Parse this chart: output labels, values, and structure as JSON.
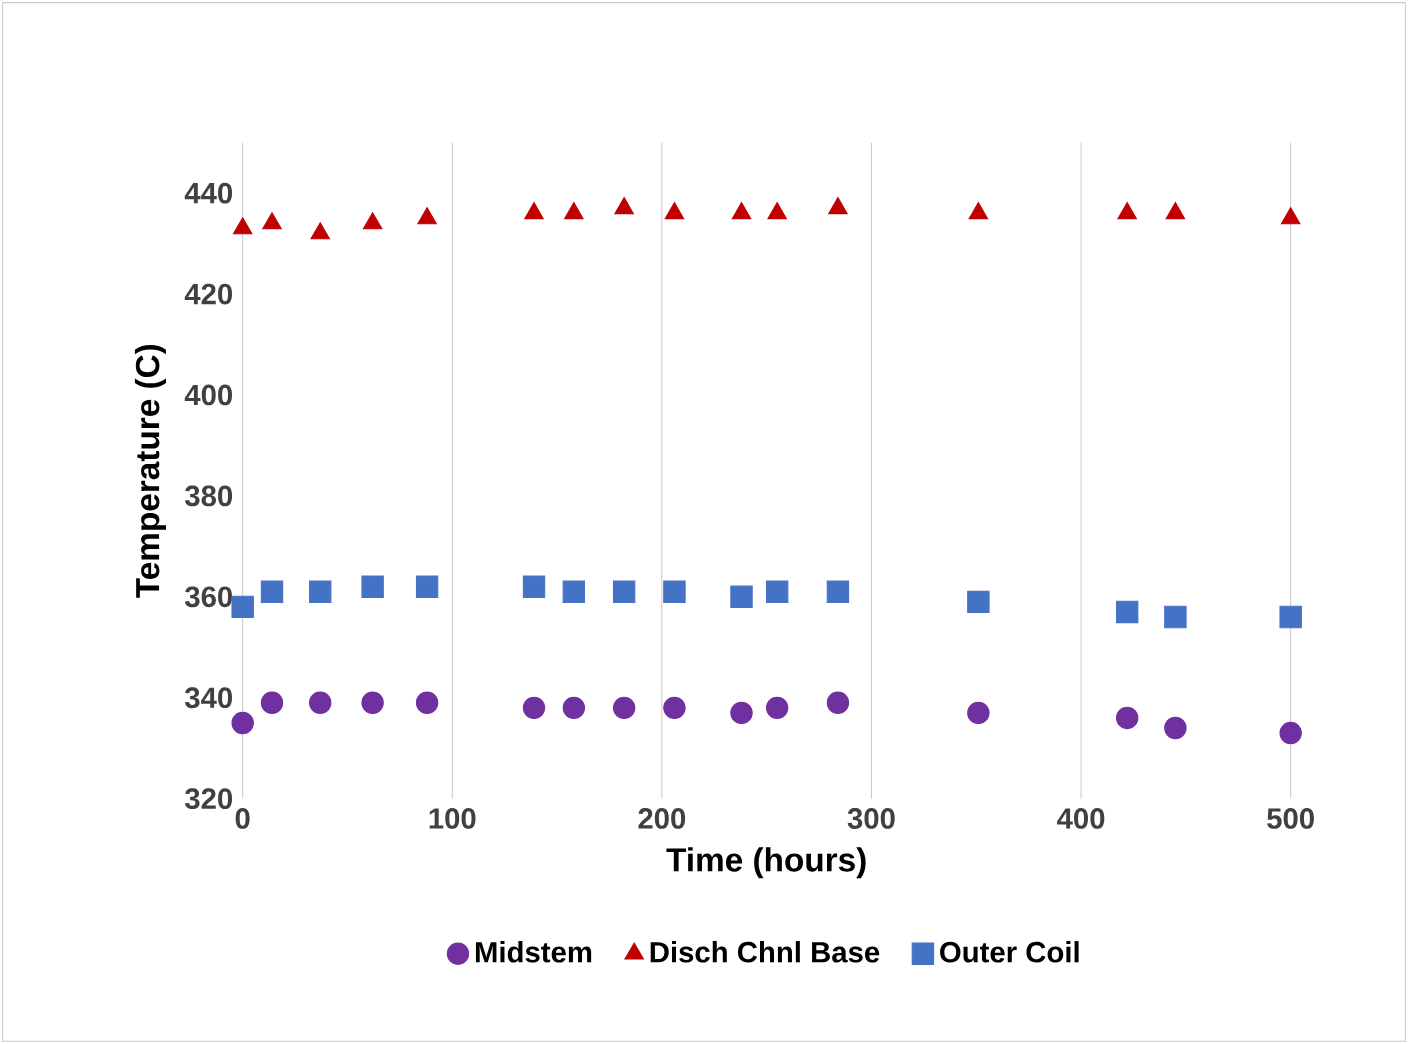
{
  "chart_data": {
    "type": "scatter",
    "xlabel": "Time (hours)",
    "ylabel": "Temperature (C)",
    "xlim": [
      0,
      500
    ],
    "xticks": [
      0,
      100,
      200,
      300,
      400,
      500
    ],
    "ylim": [
      320,
      450
    ],
    "yticks": [
      320,
      340,
      360,
      380,
      400,
      420,
      440
    ],
    "grid": "x",
    "legend": "bottom",
    "series": [
      {
        "name": "Midstem",
        "color": "#7030a0",
        "marker": "circle",
        "x": [
          0,
          14,
          37,
          62,
          88,
          139,
          158,
          182,
          206,
          238,
          255,
          284,
          351,
          422,
          445,
          500
        ],
        "values": [
          335,
          339,
          339,
          339,
          339,
          338,
          338,
          338,
          338,
          337,
          338,
          339,
          337,
          336,
          334,
          333
        ]
      },
      {
        "name": "Disch Chnl Base",
        "color": "#c00000",
        "marker": "triangle",
        "x": [
          0,
          14,
          37,
          62,
          88,
          139,
          158,
          182,
          206,
          238,
          255,
          284,
          351,
          422,
          445,
          500
        ],
        "values": [
          433,
          434,
          432,
          434,
          435,
          436,
          436,
          437,
          436,
          436,
          436,
          437,
          436,
          436,
          436,
          435
        ]
      },
      {
        "name": "Outer Coil",
        "color": "#4472c4",
        "marker": "square",
        "x": [
          0,
          14,
          37,
          62,
          88,
          139,
          158,
          182,
          206,
          238,
          255,
          284,
          351,
          422,
          445,
          500
        ],
        "values": [
          358,
          361,
          361,
          362,
          362,
          362,
          361,
          361,
          361,
          360,
          361,
          361,
          359,
          357,
          356,
          356
        ]
      }
    ]
  }
}
